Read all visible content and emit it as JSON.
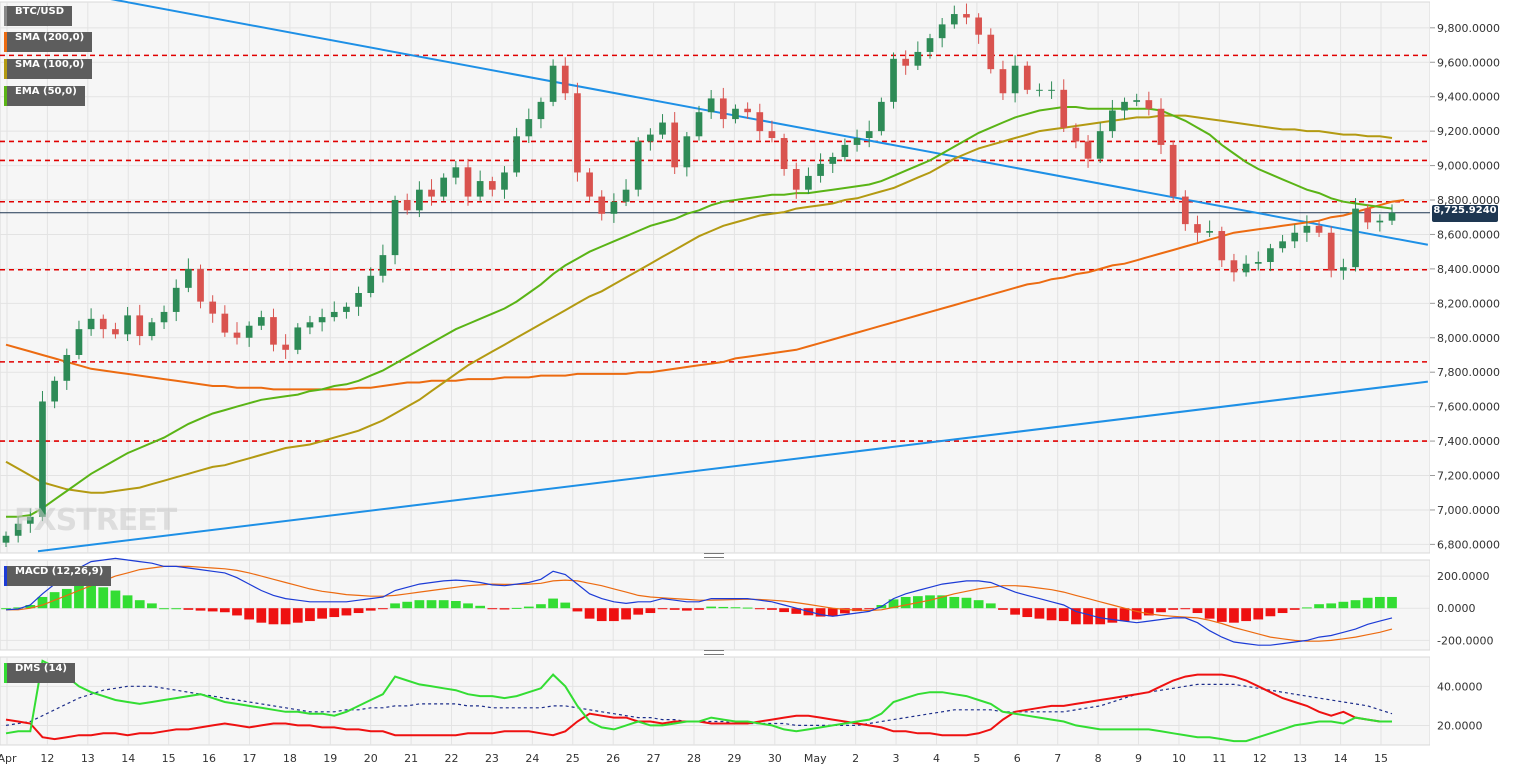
{
  "symbol": "BTC/USD",
  "price_tag": "8,725.9240",
  "watermark": "FXSTREET",
  "indicators": {
    "sma200": "SMA (200,0)",
    "sma100": "SMA (100,0)",
    "ema50": "EMA (50,0)",
    "macd": "MACD (12,26,9)",
    "dms": "DMS (14)"
  },
  "colors": {
    "bull": "#2e8b57",
    "bear": "#d9534f",
    "trendline": "#1e90e6",
    "sma200": "#ec6b11",
    "sma100": "#b39a12",
    "ema50": "#5ab416",
    "resistance": "#e00000",
    "macd": "#1c3bd6",
    "signal": "#ec6b11",
    "hist_pos": "#33dd33",
    "hist_neg": "#ee1111",
    "dms_plus": "#33dd33",
    "dms_minus": "#ee1111",
    "adx": "#1c2d8a"
  },
  "chart_data": {
    "type": "candlestick",
    "price_axis": {
      "min": 6750,
      "max": 9950,
      "ticks": [
        9800,
        9600,
        9400,
        9200,
        9000,
        8800,
        8600,
        8400,
        8200,
        8000,
        7800,
        7600,
        7400,
        7200,
        7000,
        6800
      ],
      "tick_labels": [
        "9,800.0000",
        "9,600.0000",
        "9,400.0000",
        "9,200.0000",
        "9,000.0000",
        "8,800.0000",
        "8,600.0000",
        "8,400.0000",
        "8,200.0000",
        "8,000.0000",
        "7,800.0000",
        "7,600.0000",
        "7,400.0000",
        "7,200.0000",
        "7,000.0000",
        "6,800.0000"
      ]
    },
    "x_axis_labels": [
      "Apr",
      "12",
      "13",
      "14",
      "15",
      "16",
      "17",
      "18",
      "19",
      "20",
      "21",
      "22",
      "23",
      "24",
      "25",
      "26",
      "27",
      "28",
      "29",
      "30",
      "May",
      "2",
      "3",
      "4",
      "5",
      "6",
      "7",
      "8",
      "9",
      "10",
      "11",
      "12",
      "13",
      "14",
      "15"
    ],
    "current_price": 8725.924,
    "horizontal_levels": [
      9640,
      9140,
      9030,
      8790,
      8395,
      7860,
      7400
    ],
    "trendlines": [
      {
        "name": "descending",
        "points": [
          [
            -0.02,
            10120
          ],
          [
            0.94,
            8540
          ]
        ]
      },
      {
        "name": "ascending",
        "points": [
          [
            0.025,
            6760
          ],
          [
            0.94,
            7745
          ]
        ]
      }
    ],
    "closes": [
      6850,
      6920,
      6960,
      7630,
      7750,
      7900,
      8050,
      8110,
      8050,
      8020,
      8130,
      8010,
      8090,
      8150,
      8290,
      8400,
      8210,
      8140,
      8030,
      8000,
      8070,
      8120,
      7960,
      7930,
      8060,
      8090,
      8120,
      8150,
      8180,
      8260,
      8360,
      8480,
      8800,
      8740,
      8860,
      8820,
      8930,
      8990,
      8820,
      8910,
      8860,
      8960,
      9170,
      9270,
      9370,
      9580,
      9420,
      8960,
      8820,
      8720,
      8790,
      8860,
      9140,
      9180,
      9250,
      8990,
      9170,
      9310,
      9390,
      9270,
      9330,
      9310,
      9200,
      9160,
      8980,
      8860,
      8940,
      9010,
      9050,
      9120,
      9160,
      9200,
      9370,
      9620,
      9580,
      9660,
      9740,
      9820,
      9880,
      9860,
      9760,
      9560,
      9420,
      9580,
      9440,
      9440,
      9440,
      9220,
      9140,
      9040,
      9200,
      9320,
      9370,
      9380,
      9330,
      9120,
      8820,
      8660,
      8610,
      8620,
      8450,
      8380,
      8430,
      8440,
      8520,
      8560,
      8610,
      8650,
      8610,
      8390,
      8410,
      8750,
      8670,
      8680,
      8725.924
    ],
    "ema50": [
      6960,
      6960,
      6970,
      7010,
      7060,
      7110,
      7160,
      7210,
      7250,
      7290,
      7330,
      7360,
      7390,
      7420,
      7460,
      7500,
      7530,
      7560,
      7580,
      7600,
      7620,
      7640,
      7650,
      7660,
      7670,
      7690,
      7700,
      7720,
      7730,
      7750,
      7780,
      7810,
      7850,
      7890,
      7930,
      7970,
      8010,
      8050,
      8080,
      8110,
      8140,
      8170,
      8210,
      8260,
      8310,
      8370,
      8420,
      8460,
      8500,
      8530,
      8560,
      8590,
      8620,
      8650,
      8670,
      8690,
      8720,
      8740,
      8770,
      8790,
      8800,
      8810,
      8820,
      8830,
      8830,
      8840,
      8840,
      8850,
      8860,
      8870,
      8880,
      8890,
      8910,
      8940,
      8970,
      9000,
      9030,
      9070,
      9110,
      9150,
      9190,
      9220,
      9250,
      9280,
      9300,
      9320,
      9330,
      9340,
      9340,
      9330,
      9330,
      9330,
      9330,
      9330,
      9330,
      9320,
      9290,
      9260,
      9220,
      9180,
      9120,
      9070,
      9020,
      8980,
      8950,
      8920,
      8890,
      8860,
      8840,
      8810,
      8790,
      8780,
      8770,
      8760,
      8750
    ],
    "sma100": [
      7280,
      7240,
      7200,
      7160,
      7140,
      7120,
      7110,
      7100,
      7100,
      7110,
      7120,
      7130,
      7150,
      7170,
      7190,
      7210,
      7230,
      7250,
      7260,
      7280,
      7300,
      7320,
      7340,
      7360,
      7370,
      7380,
      7400,
      7420,
      7440,
      7460,
      7490,
      7520,
      7560,
      7600,
      7640,
      7690,
      7740,
      7790,
      7840,
      7880,
      7920,
      7960,
      8000,
      8040,
      8080,
      8120,
      8160,
      8200,
      8240,
      8270,
      8310,
      8350,
      8390,
      8430,
      8470,
      8510,
      8550,
      8590,
      8620,
      8650,
      8670,
      8690,
      8710,
      8720,
      8730,
      8750,
      8760,
      8770,
      8780,
      8800,
      8810,
      8830,
      8850,
      8870,
      8900,
      8930,
      8960,
      9000,
      9040,
      9070,
      9100,
      9120,
      9140,
      9160,
      9180,
      9200,
      9210,
      9220,
      9230,
      9240,
      9250,
      9260,
      9270,
      9280,
      9280,
      9290,
      9290,
      9290,
      9280,
      9270,
      9260,
      9250,
      9240,
      9230,
      9220,
      9210,
      9210,
      9200,
      9200,
      9190,
      9180,
      9180,
      9170,
      9170,
      9160
    ],
    "sma200": [
      7960,
      7940,
      7920,
      7900,
      7880,
      7860,
      7840,
      7820,
      7810,
      7800,
      7790,
      7780,
      7770,
      7760,
      7750,
      7740,
      7730,
      7720,
      7720,
      7710,
      7710,
      7710,
      7700,
      7700,
      7700,
      7700,
      7700,
      7700,
      7700,
      7710,
      7710,
      7720,
      7730,
      7740,
      7740,
      7750,
      7750,
      7750,
      7760,
      7760,
      7760,
      7770,
      7770,
      7770,
      7780,
      7780,
      7780,
      7790,
      7790,
      7790,
      7790,
      7790,
      7800,
      7800,
      7810,
      7820,
      7830,
      7840,
      7850,
      7860,
      7880,
      7890,
      7900,
      7910,
      7920,
      7930,
      7950,
      7970,
      7990,
      8010,
      8030,
      8050,
      8070,
      8090,
      8110,
      8130,
      8150,
      8170,
      8190,
      8210,
      8230,
      8250,
      8270,
      8290,
      8310,
      8320,
      8340,
      8350,
      8370,
      8380,
      8400,
      8420,
      8430,
      8450,
      8470,
      8490,
      8510,
      8530,
      8550,
      8570,
      8590,
      8610,
      8620,
      8630,
      8640,
      8650,
      8660,
      8670,
      8680,
      8700,
      8710,
      8730,
      8750,
      8770,
      8790,
      8800
    ],
    "macd_panel": {
      "range": [
        -260,
        300
      ],
      "ticks": [
        200,
        0,
        -200
      ],
      "tick_labels": [
        "200.0000",
        "0.0000",
        "-200.0000"
      ],
      "macd": [
        -10,
        -5,
        20,
        90,
        150,
        200,
        250,
        290,
        300,
        310,
        300,
        290,
        280,
        260,
        260,
        250,
        240,
        230,
        220,
        190,
        150,
        110,
        80,
        60,
        50,
        40,
        40,
        40,
        40,
        50,
        60,
        70,
        110,
        130,
        150,
        160,
        170,
        175,
        170,
        160,
        145,
        140,
        150,
        160,
        180,
        230,
        210,
        150,
        90,
        60,
        40,
        30,
        40,
        40,
        60,
        50,
        40,
        40,
        60,
        60,
        60,
        60,
        50,
        40,
        20,
        0,
        -20,
        -40,
        -50,
        -40,
        -30,
        -20,
        10,
        60,
        90,
        110,
        130,
        150,
        160,
        170,
        170,
        160,
        130,
        100,
        80,
        60,
        40,
        20,
        -20,
        -40,
        -60,
        -70,
        -80,
        -90,
        -80,
        -70,
        -60,
        -60,
        -90,
        -140,
        -180,
        -210,
        -220,
        -230,
        -230,
        -220,
        -210,
        -200,
        -180,
        -170,
        -150,
        -130,
        -100,
        -80,
        -60
      ],
      "signal": [
        -10,
        -10,
        0,
        20,
        50,
        80,
        110,
        140,
        170,
        200,
        220,
        240,
        250,
        260,
        260,
        260,
        255,
        250,
        245,
        235,
        220,
        200,
        180,
        160,
        140,
        120,
        105,
        95,
        85,
        80,
        75,
        75,
        80,
        90,
        100,
        110,
        120,
        130,
        140,
        145,
        150,
        148,
        148,
        150,
        155,
        170,
        175,
        170,
        155,
        140,
        120,
        100,
        80,
        70,
        65,
        60,
        55,
        50,
        50,
        52,
        54,
        56,
        54,
        50,
        44,
        35,
        24,
        12,
        0,
        -8,
        -12,
        -14,
        -10,
        5,
        20,
        35,
        50,
        70,
        90,
        105,
        120,
        130,
        140,
        140,
        135,
        125,
        115,
        100,
        80,
        60,
        40,
        20,
        0,
        -20,
        -35,
        -45,
        -50,
        -55,
        -60,
        -75,
        -95,
        -120,
        -140,
        -160,
        -180,
        -190,
        -200,
        -205,
        -205,
        -200,
        -190,
        -180,
        -165,
        -150,
        -130
      ],
      "histogram": [
        0,
        5,
        20,
        70,
        100,
        120,
        140,
        150,
        130,
        110,
        80,
        50,
        30,
        0,
        0,
        -10,
        -15,
        -20,
        -25,
        -45,
        -70,
        -90,
        -100,
        -100,
        -90,
        -80,
        -65,
        -55,
        -45,
        -30,
        -15,
        -5,
        30,
        40,
        50,
        50,
        50,
        45,
        30,
        15,
        -5,
        -8,
        2,
        10,
        25,
        60,
        35,
        -20,
        -65,
        -80,
        -80,
        -70,
        -40,
        -30,
        -5,
        -10,
        -15,
        -10,
        10,
        8,
        6,
        4,
        -4,
        -10,
        -24,
        -35,
        -44,
        -52,
        -50,
        -32,
        -18,
        -6,
        20,
        55,
        70,
        75,
        80,
        80,
        70,
        65,
        50,
        30,
        -10,
        -40,
        -55,
        -65,
        -75,
        -80,
        -100,
        -100,
        -100,
        -90,
        -80,
        -70,
        -45,
        -25,
        -10,
        -5,
        -30,
        -65,
        -85,
        -90,
        -80,
        -70,
        -50,
        -30,
        -10,
        5,
        25,
        30,
        40,
        50,
        65,
        70,
        70
      ]
    },
    "dms_panel": {
      "range": [
        10,
        55
      ],
      "ticks": [
        40,
        20
      ],
      "tick_labels": [
        "40.0000",
        "20.0000"
      ],
      "plus_di": [
        16,
        17,
        17,
        53,
        50,
        45,
        40,
        37,
        35,
        33,
        32,
        31,
        32,
        33,
        34,
        35,
        36,
        34,
        32,
        31,
        30,
        29,
        28,
        27,
        27,
        26,
        26,
        25,
        27,
        30,
        33,
        36,
        45,
        43,
        41,
        40,
        39,
        38,
        36,
        35,
        35,
        34,
        35,
        37,
        39,
        46,
        40,
        30,
        22,
        19,
        18,
        20,
        22,
        20,
        20,
        21,
        22,
        22,
        24,
        23,
        22,
        22,
        21,
        20,
        18,
        17,
        18,
        19,
        20,
        21,
        22,
        23,
        26,
        32,
        34,
        36,
        37,
        37,
        36,
        35,
        33,
        31,
        27,
        26,
        25,
        24,
        23,
        22,
        20,
        19,
        18,
        18,
        18,
        18,
        18,
        17,
        16,
        15,
        14,
        14,
        13,
        12,
        12,
        14,
        16,
        18,
        20,
        21,
        22,
        22,
        21,
        24,
        23,
        22,
        22
      ],
      "minus_di": [
        23,
        22,
        21,
        14,
        13,
        14,
        15,
        15,
        16,
        16,
        15,
        16,
        16,
        17,
        18,
        18,
        19,
        20,
        21,
        20,
        19,
        20,
        21,
        21,
        20,
        20,
        19,
        19,
        18,
        18,
        17,
        17,
        15,
        15,
        15,
        15,
        15,
        15,
        16,
        16,
        16,
        17,
        17,
        17,
        16,
        15,
        17,
        22,
        26,
        25,
        24,
        24,
        22,
        22,
        21,
        22,
        22,
        22,
        21,
        21,
        21,
        21,
        22,
        23,
        24,
        25,
        25,
        24,
        23,
        22,
        21,
        20,
        19,
        17,
        17,
        16,
        16,
        15,
        15,
        15,
        16,
        18,
        23,
        27,
        28,
        29,
        30,
        30,
        31,
        32,
        33,
        34,
        35,
        36,
        37,
        40,
        43,
        45,
        46,
        46,
        46,
        45,
        43,
        40,
        37,
        34,
        32,
        30,
        27,
        25,
        27,
        24,
        23,
        22,
        22
      ],
      "adx": [
        20,
        21,
        22,
        25,
        28,
        31,
        34,
        36,
        38,
        39,
        40,
        40,
        40,
        39,
        38,
        37,
        36,
        35,
        34,
        33,
        32,
        31,
        30,
        29,
        28,
        27,
        27,
        27,
        28,
        28,
        29,
        29,
        30,
        30,
        31,
        31,
        31,
        31,
        30,
        30,
        29,
        29,
        29,
        29,
        29,
        30,
        30,
        29,
        28,
        27,
        26,
        25,
        24,
        24,
        23,
        23,
        22,
        22,
        22,
        22,
        21,
        21,
        21,
        21,
        21,
        20,
        20,
        20,
        20,
        20,
        20,
        21,
        22,
        23,
        24,
        25,
        26,
        27,
        28,
        28,
        28,
        28,
        27,
        27,
        27,
        27,
        27,
        27,
        28,
        29,
        30,
        32,
        34,
        36,
        37,
        38,
        39,
        40,
        41,
        41,
        41,
        41,
        40,
        39,
        38,
        37,
        36,
        35,
        34,
        33,
        32,
        31,
        30,
        28,
        26
      ]
    }
  }
}
